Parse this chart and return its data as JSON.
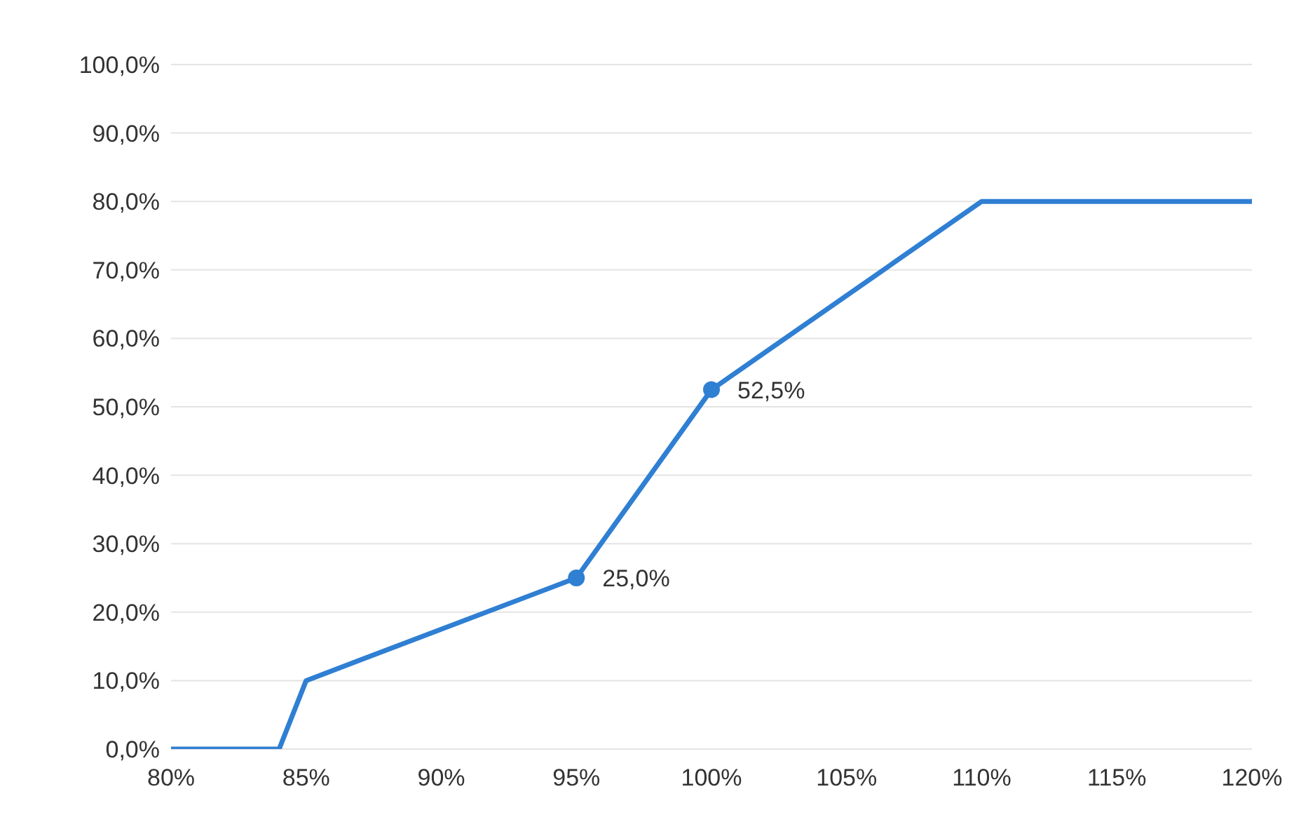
{
  "chart_data": {
    "type": "line",
    "xlim": [
      80,
      120
    ],
    "xticks": [
      {
        "value": 80,
        "label": "80%"
      },
      {
        "value": 85,
        "label": "85%"
      },
      {
        "value": 90,
        "label": "90%"
      },
      {
        "value": 95,
        "label": "95%"
      },
      {
        "value": 100,
        "label": "100%"
      },
      {
        "value": 105,
        "label": "105%"
      },
      {
        "value": 110,
        "label": "110%"
      },
      {
        "value": 115,
        "label": "115%"
      },
      {
        "value": 120,
        "label": "120%"
      }
    ],
    "ylim": [
      0,
      100
    ],
    "yticks": [
      {
        "value": 0,
        "label": "0,0%"
      },
      {
        "value": 10,
        "label": "10,0%"
      },
      {
        "value": 20,
        "label": "20,0%"
      },
      {
        "value": 30,
        "label": "30,0%"
      },
      {
        "value": 40,
        "label": "40,0%"
      },
      {
        "value": 50,
        "label": "50,0%"
      },
      {
        "value": 60,
        "label": "60,0%"
      },
      {
        "value": 70,
        "label": "70,0%"
      },
      {
        "value": 80,
        "label": "80,0%"
      },
      {
        "value": 90,
        "label": "90,0%"
      },
      {
        "value": 100,
        "label": "100,0%"
      }
    ],
    "grid": "y",
    "marker": "none",
    "line_style": "solid",
    "series": [
      {
        "color": "#2f7fd3",
        "x": [
          80,
          84,
          85,
          95,
          100,
          110,
          120
        ],
        "values": [
          0,
          0,
          10,
          25,
          52.5,
          80,
          80
        ]
      },
      {
        "type": "scatter",
        "marker": "circle",
        "color": "#2f7fd3",
        "x": [
          95,
          100
        ],
        "values": [
          25,
          52.5
        ],
        "value_labels": [
          "25,0%",
          "52,5%"
        ]
      }
    ]
  }
}
